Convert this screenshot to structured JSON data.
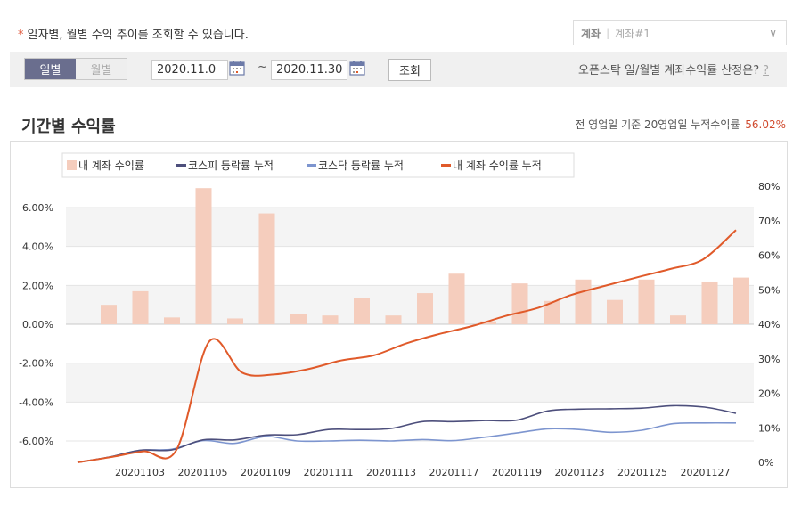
{
  "notice": "일자별, 월별 수익 추이를 조회할 수 있습니다.",
  "account": {
    "label": "계좌",
    "value": "계좌#1"
  },
  "period_toggle": {
    "daily": "일별",
    "monthly": "월별"
  },
  "date_range": {
    "start": "2020.11.0",
    "end": "2020.11.30",
    "tilde": "~"
  },
  "search_button": "조회",
  "help_text": "오픈스탁 일/월별 계좌수익률 산정은?",
  "help_q": "?",
  "section_title": "기간별 수익률",
  "summary": {
    "text": "전 영업일 기준 20영업일 누적수익률",
    "value": "56.02%"
  },
  "colors": {
    "bar": "#f5cdbd",
    "kospi": "#4d4f7c",
    "kosdaq": "#7d95cf",
    "my": "#e05a2a",
    "accent": "#6a6e8e"
  },
  "chart_data": {
    "type": "bar+line",
    "legend_position": "top-left",
    "legend": [
      "내 계좌 수익률",
      "코스피 등락률 누적",
      "코스닥 등락률 누적",
      "내 계좌 수익률 누적"
    ],
    "x_tick_labels": [
      "20201103",
      "20201105",
      "20201109",
      "20201111",
      "20201113",
      "20201117",
      "20201119",
      "20201123",
      "20201125",
      "20201127"
    ],
    "left_axis": {
      "ticks": [
        6,
        4,
        2,
        0,
        -2,
        -4,
        -6
      ],
      "tick_labels": [
        "6.00%",
        "4.00%",
        "2.00%",
        "0.00%",
        "-2.00%",
        "-4.00%",
        "-6.00%"
      ],
      "range": [
        -7.1,
        7.1
      ]
    },
    "right_axis": {
      "ticks": [
        80,
        70,
        60,
        50,
        40,
        30,
        20,
        10,
        0
      ],
      "tick_labels": [
        "80%",
        "70%",
        "60%",
        "50%",
        "40%",
        "30%",
        "20%",
        "10%",
        "0%"
      ],
      "range": [
        0,
        80
      ]
    },
    "series": [
      {
        "name": "내 계좌 수익률",
        "type": "bar",
        "axis": "left",
        "values": [
          1.0,
          1.7,
          0.35,
          7.0,
          0.3,
          5.7,
          0.55,
          0.45,
          1.35,
          0.45,
          1.6,
          2.6,
          0.15,
          2.1,
          1.2,
          2.3,
          1.25,
          2.3,
          0.45,
          2.2,
          2.4
        ]
      },
      {
        "name": "코스피 등락률 누적",
        "type": "line",
        "axis": "right",
        "values": [
          0,
          1.5,
          3.5,
          3.6,
          6.5,
          6.5,
          7.9,
          8.0,
          9.5,
          9.5,
          9.8,
          11.8,
          11.8,
          12.1,
          12.2,
          14.9,
          15.4,
          15.5,
          15.7,
          16.4,
          16.0,
          14.2
        ]
      },
      {
        "name": "코스닥 등락률 누적",
        "type": "line",
        "axis": "right",
        "values": [
          0,
          1.5,
          3.5,
          3.8,
          6.3,
          5.5,
          7.5,
          6.2,
          6.2,
          6.4,
          6.2,
          6.6,
          6.3,
          7.3,
          8.5,
          9.7,
          9.5,
          8.7,
          9.3,
          11.2,
          11.4,
          11.4
        ]
      },
      {
        "name": "내 계좌 수익률 누적",
        "type": "line",
        "axis": "right",
        "values": [
          0,
          1.5,
          3.2,
          3.5,
          35,
          26,
          25.5,
          27,
          29.5,
          31,
          34.5,
          37.2,
          39.5,
          42.4,
          44.8,
          48.5,
          51.1,
          53.6,
          56.0,
          58.8,
          67.3
        ]
      }
    ]
  }
}
